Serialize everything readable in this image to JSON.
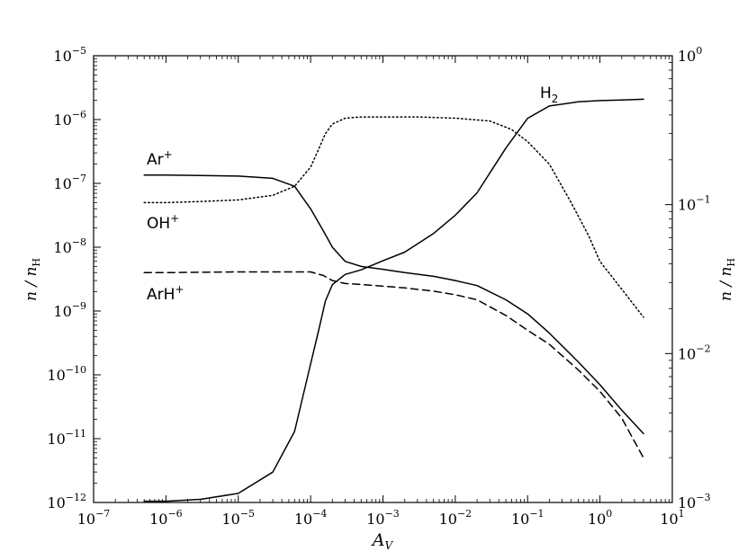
{
  "chart_data": {
    "type": "line",
    "xlabel": "A",
    "xlabel_sub": "V",
    "ylabel_left": "n / n",
    "ylabel_left_sub": "H",
    "ylabel_right": "n / n",
    "ylabel_right_sub": "H",
    "xscale": "log",
    "yscale_left": "log",
    "yscale_right": "log",
    "xlim": [
      1e-07,
      10
    ],
    "ylim_left": [
      1e-12,
      1e-05
    ],
    "ylim_right": [
      0.001,
      1
    ],
    "grid": false,
    "x_ticks": [
      {
        "base": "10",
        "exp": "−7"
      },
      {
        "base": "10",
        "exp": "−6"
      },
      {
        "base": "10",
        "exp": "−5"
      },
      {
        "base": "10",
        "exp": "−4"
      },
      {
        "base": "10",
        "exp": "−3"
      },
      {
        "base": "10",
        "exp": "−2"
      },
      {
        "base": "10",
        "exp": "−1"
      },
      {
        "base": "10",
        "exp": "0"
      },
      {
        "base": "10",
        "exp": "1"
      }
    ],
    "y_left_ticks": [
      {
        "base": "10",
        "exp": "−12"
      },
      {
        "base": "10",
        "exp": "−11"
      },
      {
        "base": "10",
        "exp": "−10"
      },
      {
        "base": "10",
        "exp": "−9"
      },
      {
        "base": "10",
        "exp": "−8"
      },
      {
        "base": "10",
        "exp": "−7"
      },
      {
        "base": "10",
        "exp": "−6"
      },
      {
        "base": "10",
        "exp": "−5"
      }
    ],
    "y_right_ticks": [
      {
        "base": "10",
        "exp": "−3"
      },
      {
        "base": "10",
        "exp": "−2"
      },
      {
        "base": "10",
        "exp": "−1"
      },
      {
        "base": "10",
        "exp": "0"
      }
    ],
    "series": [
      {
        "name": "Ar+",
        "label_text": "Ar",
        "label_sup": "+",
        "axis": "left",
        "style": "solid",
        "x": [
          5e-07,
          1e-06,
          3e-06,
          1e-05,
          3e-05,
          6e-05,
          0.0001,
          0.00015,
          0.0002,
          0.0003,
          0.0005,
          0.001,
          0.002,
          0.005,
          0.01,
          0.02,
          0.05,
          0.1,
          0.2,
          0.5,
          1,
          2,
          4
        ],
        "y": [
          1.35e-07,
          1.35e-07,
          1.33e-07,
          1.3e-07,
          1.2e-07,
          9e-08,
          4e-08,
          1.8e-08,
          1e-08,
          6e-09,
          5e-09,
          4.5e-09,
          4e-09,
          3.5e-09,
          3e-09,
          2.5e-09,
          1.5e-09,
          9e-10,
          4.5e-10,
          1.6e-10,
          7e-11,
          2.8e-11,
          1.2e-11
        ]
      },
      {
        "name": "OH+",
        "label_text": "OH",
        "label_sup": "+",
        "axis": "left",
        "style": "dotted",
        "x": [
          5e-07,
          1e-06,
          3e-06,
          1e-05,
          3e-05,
          6e-05,
          0.0001,
          0.00013,
          0.00016,
          0.0002,
          0.0003,
          0.0005,
          0.001,
          0.003,
          0.01,
          0.03,
          0.06,
          0.1,
          0.2,
          0.4,
          0.7,
          1,
          2,
          4
        ],
        "y": [
          5e-08,
          5e-08,
          5.2e-08,
          5.5e-08,
          6.5e-08,
          9e-08,
          1.8e-07,
          3.5e-07,
          6e-07,
          8.5e-07,
          1.05e-06,
          1.1e-06,
          1.1e-06,
          1.1e-06,
          1.05e-06,
          9.5e-07,
          7e-07,
          4.5e-07,
          2e-07,
          5e-08,
          1.5e-08,
          6e-09,
          2.2e-09,
          8e-10
        ]
      },
      {
        "name": "ArH+",
        "label_text": "ArH",
        "label_sup": "+",
        "axis": "left",
        "style": "dashed",
        "x": [
          5e-07,
          1e-06,
          3e-06,
          1e-05,
          3e-05,
          0.0001,
          0.00015,
          0.0002,
          0.0003,
          0.0005,
          0.001,
          0.002,
          0.005,
          0.01,
          0.02,
          0.05,
          0.1,
          0.2,
          0.5,
          1,
          2,
          4
        ],
        "y": [
          4e-09,
          4e-09,
          4.05e-09,
          4.1e-09,
          4.1e-09,
          4.1e-09,
          3.6e-09,
          3e-09,
          2.7e-09,
          2.6e-09,
          2.45e-09,
          2.3e-09,
          2.05e-09,
          1.8e-09,
          1.5e-09,
          8.5e-10,
          5e-10,
          3e-10,
          1.2e-10,
          5.5e-11,
          2.1e-11,
          5e-12
        ]
      },
      {
        "name": "H2",
        "label_text": "H",
        "label_sub": "2",
        "axis": "right",
        "style": "solid",
        "x": [
          5e-07,
          1e-06,
          3e-06,
          1e-05,
          3e-05,
          6e-05,
          0.0001,
          0.00013,
          0.00016,
          0.0002,
          0.0003,
          0.0005,
          0.001,
          0.002,
          0.005,
          0.01,
          0.02,
          0.05,
          0.1,
          0.2,
          0.5,
          1,
          2,
          4
        ],
        "y": [
          0.00102,
          0.00102,
          0.00105,
          0.00115,
          0.0016,
          0.003,
          0.0085,
          0.0145,
          0.0225,
          0.029,
          0.034,
          0.0365,
          0.042,
          0.048,
          0.064,
          0.085,
          0.12,
          0.24,
          0.38,
          0.46,
          0.49,
          0.5,
          0.505,
          0.51
        ]
      }
    ]
  }
}
